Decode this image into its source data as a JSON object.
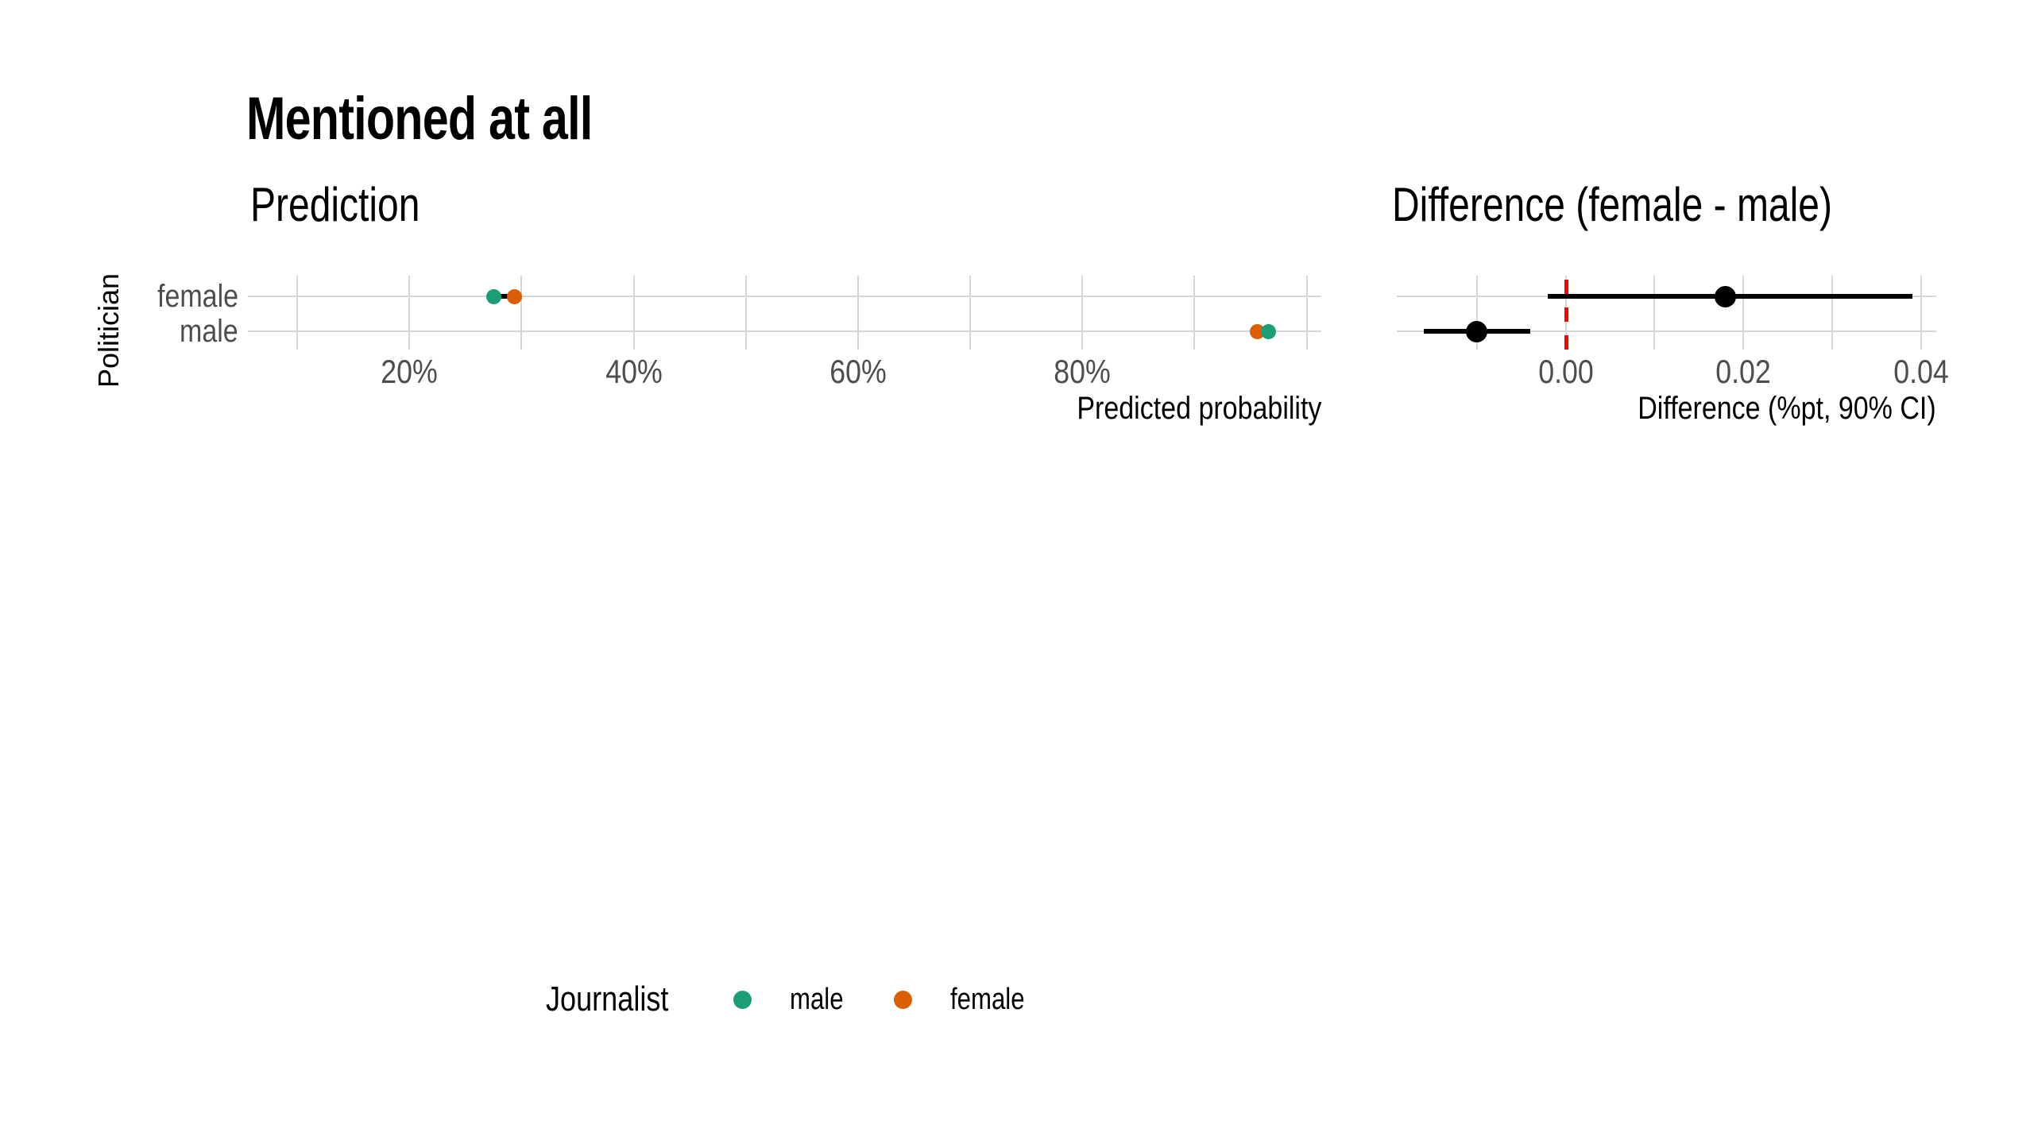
{
  "page_title": "Mentioned at all",
  "panels": {
    "prediction": {
      "title": "Prediction",
      "x_axis_title": "Predicted probability",
      "y_axis_title": "Politician",
      "categories": [
        "female",
        "male"
      ]
    },
    "difference": {
      "title": "Difference (female - male)",
      "x_axis_title": "Difference (%pt, 90% CI)",
      "categories": [
        "female",
        "male"
      ]
    }
  },
  "legend": {
    "title": "Journalist",
    "items": [
      {
        "label": "male",
        "color": "#1B9E77"
      },
      {
        "label": "female",
        "color": "#D95F02"
      }
    ]
  },
  "colors": {
    "journalist_male": "#1B9E77",
    "journalist_female": "#D95F02",
    "difference_point": "#000000",
    "reference_line": "#FF0000",
    "gridline": "#D6D6D6",
    "axis_text": "#4D4D4D"
  },
  "chart_data": [
    {
      "type": "scatter",
      "title": "Prediction",
      "xlabel": "Predicted probability",
      "ylabel": "Politician",
      "categories": [
        "female",
        "male"
      ],
      "x_unit": "percent of predicted probability",
      "xlim": [
        5.6,
        101.3
      ],
      "x_ticks": [
        {
          "value": 20,
          "label": "20%"
        },
        {
          "value": 40,
          "label": "40%"
        },
        {
          "value": 60,
          "label": "60%"
        },
        {
          "value": 80,
          "label": "80%"
        }
      ],
      "x_gridlines": [
        10,
        20,
        30,
        40,
        50,
        60,
        70,
        80,
        90,
        100
      ],
      "grid": true,
      "legend_position": "bottom",
      "series": [
        {
          "name": "male",
          "legend": "Journalist: male",
          "color": "#1B9E77",
          "values": [
            27.5,
            96.6
          ]
        },
        {
          "name": "female",
          "legend": "Journalist: female",
          "color": "#D95F02",
          "values": [
            29.4,
            95.6
          ]
        }
      ],
      "ci_segments": [
        {
          "category": "female",
          "low": 27.1,
          "high": 29.7
        },
        {
          "category": "male",
          "low": 95.4,
          "high": 96.8
        }
      ]
    },
    {
      "type": "scatter",
      "title": "Difference (female - male)",
      "xlabel": "Difference (%pt, 90% CI)",
      "categories": [
        "female",
        "male"
      ],
      "xlim": [
        -0.019,
        0.0417
      ],
      "x_ticks": [
        {
          "value": 0,
          "label": "0.00"
        },
        {
          "value": 0.02,
          "label": "0.02"
        },
        {
          "value": 0.04,
          "label": "0.04"
        }
      ],
      "x_gridlines": [
        -0.01,
        0,
        0.01,
        0.02,
        0.03,
        0.04
      ],
      "grid": true,
      "reference_line": {
        "value": 0,
        "color": "#FF0000",
        "style": "dashed"
      },
      "series": [
        {
          "name": "difference",
          "color": "#000000",
          "values": [
            0.018,
            -0.01
          ],
          "ci_low": [
            -0.002,
            -0.016
          ],
          "ci_high": [
            0.039,
            -0.004
          ]
        }
      ]
    }
  ]
}
